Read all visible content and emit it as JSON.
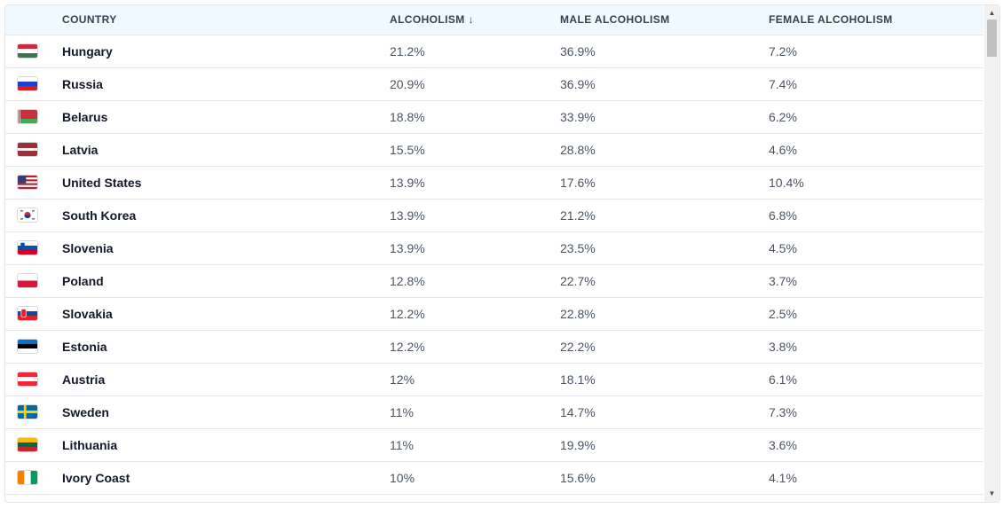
{
  "table": {
    "headers": {
      "country": "COUNTRY",
      "alcoholism": "ALCOHOLISM",
      "sort_indicator": "↓",
      "male": "MALE ALCOHOLISM",
      "female": "FEMALE ALCOHOLISM"
    },
    "rows": [
      {
        "country": "Hungary",
        "flag": "flag-hungary",
        "alcoholism": "21.2%",
        "male": "36.9%",
        "female": "7.2%"
      },
      {
        "country": "Russia",
        "flag": "flag-russia",
        "alcoholism": "20.9%",
        "male": "36.9%",
        "female": "7.4%"
      },
      {
        "country": "Belarus",
        "flag": "flag-belarus",
        "alcoholism": "18.8%",
        "male": "33.9%",
        "female": "6.2%"
      },
      {
        "country": "Latvia",
        "flag": "flag-latvia",
        "alcoholism": "15.5%",
        "male": "28.8%",
        "female": "4.6%"
      },
      {
        "country": "United States",
        "flag": "flag-united-states",
        "alcoholism": "13.9%",
        "male": "17.6%",
        "female": "10.4%"
      },
      {
        "country": "South Korea",
        "flag": "flag-south-korea",
        "alcoholism": "13.9%",
        "male": "21.2%",
        "female": "6.8%"
      },
      {
        "country": "Slovenia",
        "flag": "flag-slovenia",
        "alcoholism": "13.9%",
        "male": "23.5%",
        "female": "4.5%"
      },
      {
        "country": "Poland",
        "flag": "flag-poland",
        "alcoholism": "12.8%",
        "male": "22.7%",
        "female": "3.7%"
      },
      {
        "country": "Slovakia",
        "flag": "flag-slovakia",
        "alcoholism": "12.2%",
        "male": "22.8%",
        "female": "2.5%"
      },
      {
        "country": "Estonia",
        "flag": "flag-estonia",
        "alcoholism": "12.2%",
        "male": "22.2%",
        "female": "3.8%"
      },
      {
        "country": "Austria",
        "flag": "flag-austria",
        "alcoholism": "12%",
        "male": "18.1%",
        "female": "6.1%"
      },
      {
        "country": "Sweden",
        "flag": "flag-sweden",
        "alcoholism": "11%",
        "male": "14.7%",
        "female": "7.3%"
      },
      {
        "country": "Lithuania",
        "flag": "flag-lithuania",
        "alcoholism": "11%",
        "male": "19.9%",
        "female": "3.6%"
      },
      {
        "country": "Ivory Coast",
        "flag": "flag-ivory-coast",
        "alcoholism": "10%",
        "male": "15.6%",
        "female": "4.1%"
      }
    ]
  },
  "scrollbar": {
    "up_icon": "▲",
    "down_icon": "▼"
  },
  "colors": {
    "header_bg": "#f0f9ff",
    "row_border": "#e5e7eb",
    "country_text": "#111827",
    "value_text": "#4b5563"
  }
}
